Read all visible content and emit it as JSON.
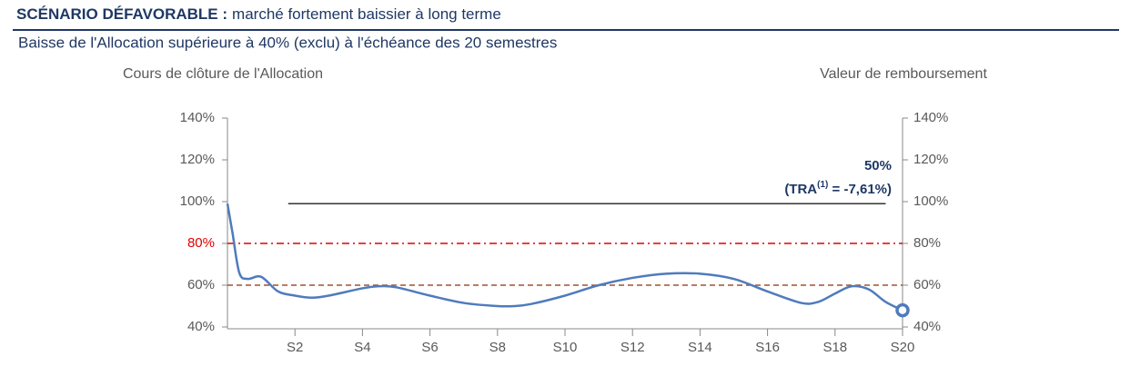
{
  "header": {
    "title_bold": "SCÉNARIO DÉFAVORABLE :",
    "title_rest": "marché fortement baissier à long terme",
    "subtitle": "Baisse de l'Allocation supérieure à 40% (exclu) à l'échéance des 20 semestres"
  },
  "chart_data": {
    "type": "line",
    "ylabel": "Cours de clôture de l'Allocation",
    "y2label": "Valeur de remboursement",
    "x": [
      0,
      0.15,
      0.35,
      0.6,
      1,
      1.5,
      2,
      2.5,
      3,
      4,
      4.5,
      5,
      6,
      7,
      8,
      8.5,
      9,
      10,
      11,
      12,
      13,
      14,
      15,
      16,
      17,
      17.5,
      18,
      18.5,
      19,
      19.5,
      20
    ],
    "series": [
      {
        "color": "#4f7bbd",
        "values": [
          99,
          85,
          66,
          63,
          64,
          57,
          55,
          54,
          55,
          58.5,
          59.5,
          59,
          55,
          51.5,
          50,
          50,
          51,
          55,
          60,
          63.5,
          65.5,
          65.5,
          63,
          57,
          51.5,
          52,
          56,
          59.5,
          58,
          52,
          48
        ]
      }
    ],
    "xlim": [
      0,
      20
    ],
    "xticks": [
      {
        "value": 2,
        "label": "S2"
      },
      {
        "value": 4,
        "label": "S4"
      },
      {
        "value": 6,
        "label": "S6"
      },
      {
        "value": 8,
        "label": "S8"
      },
      {
        "value": 10,
        "label": "S10"
      },
      {
        "value": 12,
        "label": "S12"
      },
      {
        "value": 14,
        "label": "S14"
      },
      {
        "value": 16,
        "label": "S16"
      },
      {
        "value": 18,
        "label": "S18"
      },
      {
        "value": 20,
        "label": "S20"
      }
    ],
    "ylim": [
      40,
      140
    ],
    "yticks": [
      {
        "value": 40,
        "label": "40%"
      },
      {
        "value": 60,
        "label": "60%"
      },
      {
        "value": 80,
        "label": "80%"
      },
      {
        "value": 100,
        "label": "100%"
      },
      {
        "value": 120,
        "label": "120%"
      },
      {
        "value": 140,
        "label": "140%"
      }
    ],
    "y2lim": [
      40,
      140
    ],
    "y2ticks": [
      {
        "value": 40,
        "label": "40%"
      },
      {
        "value": 60,
        "label": "60%"
      },
      {
        "value": 80,
        "label": "80%"
      },
      {
        "value": 100,
        "label": "100%"
      },
      {
        "value": 120,
        "label": "120%"
      },
      {
        "value": 140,
        "label": "140%"
      }
    ],
    "reference_lines": [
      {
        "value": 80,
        "color": "#e00000",
        "style": "dashdot"
      },
      {
        "value": 60,
        "color": "#a0522d",
        "style": "dashed"
      }
    ],
    "redemption_line": {
      "x": [
        1.8,
        19.5
      ],
      "value": 99,
      "color": "#333333"
    },
    "end_marker": {
      "x": 20,
      "value": 48,
      "color": "#4f7bbd"
    },
    "redemption_label": {
      "value": 50,
      "value_label": "50%",
      "tra_prefix": "(TRA",
      "tra_note": "(1)",
      "tra_suffix": " = -7,61%)",
      "color": "#1f3864"
    }
  }
}
